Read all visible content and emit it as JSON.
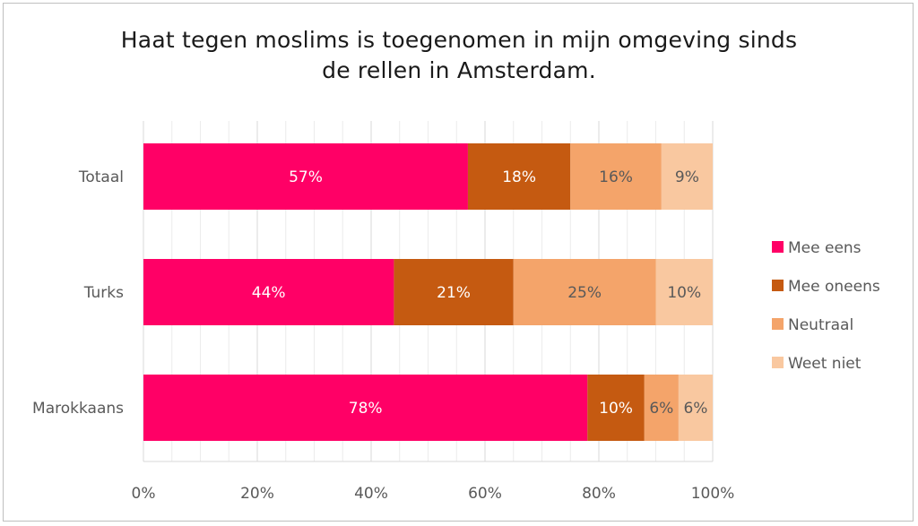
{
  "chart_data": {
    "type": "bar",
    "orientation": "horizontal",
    "stacked": "percent",
    "title_lines": [
      "Haat tegen moslims is toegenomen in mijn omgeving sinds",
      "de rellen in Amsterdam."
    ],
    "categories": [
      "Totaal",
      "Turks",
      "Marokkaans"
    ],
    "series": [
      {
        "name": "Mee eens",
        "color": "#ff0066",
        "values": [
          57,
          44,
          78
        ],
        "labels": [
          "57%",
          "44%",
          "78%"
        ],
        "label_color": "#ffffff"
      },
      {
        "name": "Mee oneens",
        "color": "#c55a11",
        "values": [
          18,
          21,
          10
        ],
        "labels": [
          "18%",
          "21%",
          "10%"
        ],
        "label_color": "#ffffff"
      },
      {
        "name": "Neutraal",
        "color": "#f4a46a",
        "values": [
          16,
          25,
          6
        ],
        "labels": [
          "16%",
          "25%",
          "6%"
        ],
        "label_color": "#595959"
      },
      {
        "name": "Weet niet",
        "color": "#f9c8a0",
        "values": [
          9,
          10,
          6
        ],
        "labels": [
          "9%",
          "10%",
          "6%"
        ],
        "label_color": "#595959"
      }
    ],
    "xticks": [
      "0%",
      "20%",
      "40%",
      "60%",
      "80%",
      "100%"
    ],
    "xlim": [
      0,
      100
    ],
    "grid": true,
    "legend_position": "right"
  }
}
